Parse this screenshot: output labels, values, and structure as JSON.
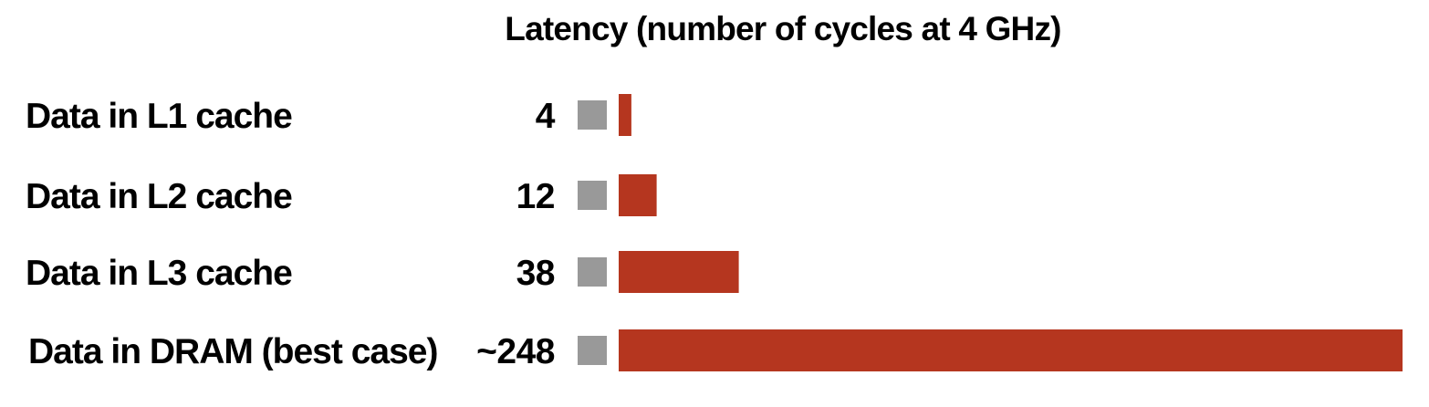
{
  "chart_data": {
    "type": "bar",
    "orientation": "horizontal",
    "title": "Latency (number of cycles at 4 GHz)",
    "categories": [
      "Data in L1 cache",
      "Data in L2 cache",
      "Data in L3 cache",
      "Data in DRAM (best case)"
    ],
    "values": [
      4,
      12,
      38,
      248
    ],
    "value_labels": [
      "4",
      "12",
      "38",
      "~248"
    ],
    "bar_color": "#b5361f",
    "marker_color": "#999999",
    "grid": false,
    "legend": "none"
  }
}
